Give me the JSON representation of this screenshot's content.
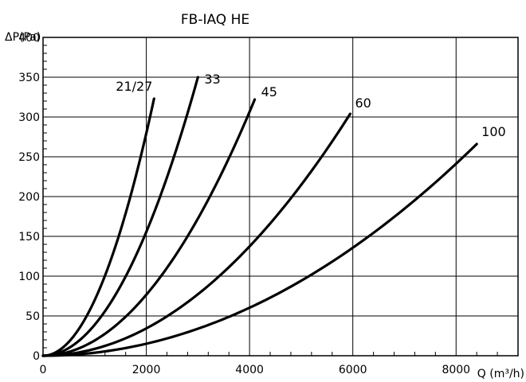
{
  "chart_data": {
    "type": "line",
    "title": "FB-IAQ HE",
    "xlabel": "Q (m³/h)",
    "ylabel": "ΔP(Pa)",
    "xlim": [
      0,
      9200
    ],
    "ylim": [
      0,
      400
    ],
    "x_ticks": [
      0,
      2000,
      4000,
      6000,
      8000
    ],
    "y_ticks": [
      0,
      50,
      100,
      150,
      200,
      250,
      300,
      350,
      400
    ],
    "grid": true,
    "series": [
      {
        "name": "21/27",
        "x_max": 2150,
        "y_max": 323,
        "exponent": 2.0
      },
      {
        "name": "33",
        "x_max": 3000,
        "y_max": 350,
        "exponent": 2.0
      },
      {
        "name": "45",
        "x_max": 4100,
        "y_max": 322,
        "exponent": 2.0
      },
      {
        "name": "60",
        "x_max": 5950,
        "y_max": 304,
        "exponent": 2.0
      },
      {
        "name": "100",
        "x_max": 8400,
        "y_max": 266,
        "exponent": 2.0
      }
    ]
  }
}
